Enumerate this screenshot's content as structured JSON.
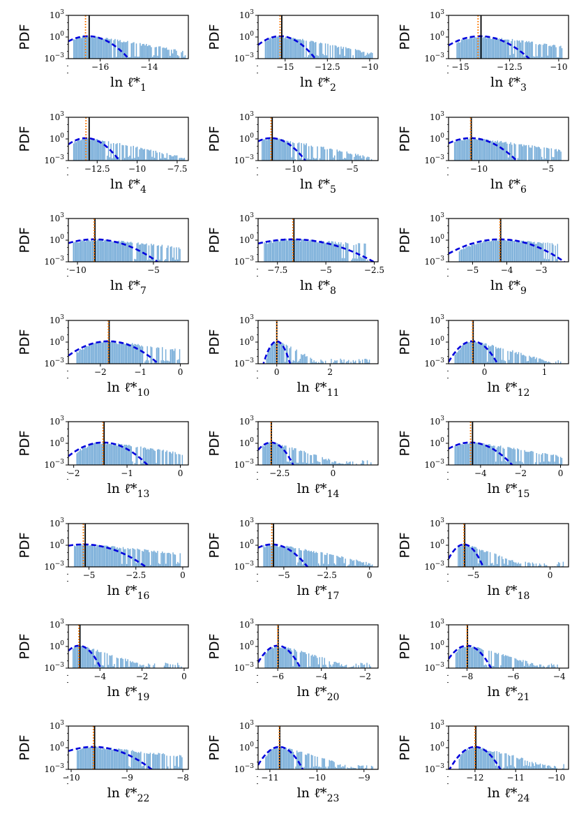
{
  "chart_data": [
    {
      "type": "histogram",
      "ylabel": "PDF",
      "xlabel": "ln ℓ̄*",
      "xlabel_sub": "1",
      "xlim": [
        -17.3,
        -12.4
      ],
      "xticks": [
        -16,
        -14
      ],
      "yscale": "log",
      "ylim": [
        0.001,
        1000
      ],
      "yticks": [
        {
          "base": "10",
          "exp": "3"
        },
        {
          "base": "10",
          "exp": "0"
        },
        {
          "base": "10",
          "exp": "−3"
        }
      ],
      "mode": -16.5,
      "spread": 0.4,
      "hist_start": -17.1,
      "hist_end": -12.5,
      "vlines": {
        "median": -16.45,
        "mean": -16.6
      }
    },
    {
      "type": "histogram",
      "ylabel": "PDF",
      "xlabel": "ln ℓ̄*",
      "xlabel_sub": "2",
      "xlim": [
        -16.6,
        -9.5
      ],
      "xticks": [
        -15.0,
        -12.5,
        -10.0
      ],
      "yscale": "log",
      "ylim": [
        0.001,
        1000
      ],
      "yticks": [
        {
          "base": "10",
          "exp": "3"
        },
        {
          "base": "10",
          "exp": "0"
        },
        {
          "base": "10",
          "exp": "−3"
        }
      ],
      "mode": -15.3,
      "spread": 0.5,
      "hist_start": -16.2,
      "hist_end": -9.8,
      "vlines": {
        "median": -15.2,
        "mean": -15.3
      }
    },
    {
      "type": "histogram",
      "ylabel": "PDF",
      "xlabel": "ln ℓ̄*",
      "xlabel_sub": "3",
      "xlim": [
        -15.6,
        -9.5
      ],
      "xticks": [
        -15.0,
        -12.5,
        -10.0
      ],
      "yscale": "log",
      "ylim": [
        0.001,
        1000
      ],
      "yticks": [
        {
          "base": "10",
          "exp": "3"
        },
        {
          "base": "10",
          "exp": "0"
        },
        {
          "base": "10",
          "exp": "−3"
        }
      ],
      "mode": -14.0,
      "spread": 0.6,
      "hist_start": -15.2,
      "hist_end": -9.8,
      "vlines": {
        "median": -13.95,
        "mean": -14.1
      }
    },
    {
      "type": "histogram",
      "ylabel": "PDF",
      "xlabel": "ln ℓ̄*",
      "xlabel_sub": "4",
      "xlim": [
        -14.3,
        -6.8
      ],
      "xticks": [
        -12.5,
        -10.0,
        -7.5
      ],
      "yscale": "log",
      "ylim": [
        0.001,
        1000
      ],
      "yticks": [
        {
          "base": "10",
          "exp": "3"
        },
        {
          "base": "10",
          "exp": "0"
        },
        {
          "base": "10",
          "exp": "−3"
        }
      ],
      "mode": -13.2,
      "spread": 0.5,
      "hist_start": -14.0,
      "hist_end": -7.0,
      "vlines": {
        "median": -13.0,
        "mean": -13.2
      }
    },
    {
      "type": "histogram",
      "ylabel": "PDF",
      "xlabel": "ln ℓ̄*",
      "xlabel_sub": "5",
      "xlim": [
        -13.0,
        -2.8
      ],
      "xticks": [
        -10,
        -5
      ],
      "yscale": "log",
      "ylim": [
        0.001,
        1000
      ],
      "yticks": [
        {
          "base": "10",
          "exp": "3"
        },
        {
          "base": "10",
          "exp": "0"
        },
        {
          "base": "10",
          "exp": "−3"
        }
      ],
      "mode": -11.9,
      "spread": 0.7,
      "hist_start": -12.7,
      "hist_end": -3.3,
      "vlines": {
        "median": -11.8,
        "mean": -11.9
      }
    },
    {
      "type": "histogram",
      "ylabel": "PDF",
      "xlabel": "ln ℓ̄*",
      "xlabel_sub": "6",
      "xlim": [
        -12.2,
        -3.5
      ],
      "xticks": [
        -10,
        -5
      ],
      "yscale": "log",
      "ylim": [
        0.001,
        1000
      ],
      "yticks": [
        {
          "base": "10",
          "exp": "3"
        },
        {
          "base": "10",
          "exp": "0"
        },
        {
          "base": "10",
          "exp": "−3"
        }
      ],
      "mode": -10.6,
      "spread": 0.8,
      "hist_start": -11.8,
      "hist_end": -4.0,
      "vlines": {
        "median": -10.55,
        "mean": -10.6
      }
    },
    {
      "type": "histogram",
      "ylabel": "PDF",
      "xlabel": "ln ℓ̄*",
      "xlabel_sub": "7",
      "xlim": [
        -10.6,
        -2.7
      ],
      "xticks": [
        -10,
        -5
      ],
      "yscale": "log",
      "ylim": [
        0.001,
        1000
      ],
      "yticks": [
        {
          "base": "10",
          "exp": "3"
        },
        {
          "base": "10",
          "exp": "0"
        },
        {
          "base": "10",
          "exp": "−3"
        }
      ],
      "mode": -8.9,
      "spread": 1.0,
      "hist_start": -10.3,
      "hist_end": -3.2,
      "vlines": {
        "median": -8.85,
        "mean": -8.9
      }
    },
    {
      "type": "histogram",
      "ylabel": "PDF",
      "xlabel": "ln ℓ̄*",
      "xlabel_sub": "8",
      "xlim": [
        -8.5,
        -2.3
      ],
      "xticks": [
        -7.5,
        -5.0,
        -2.5
      ],
      "yscale": "log",
      "ylim": [
        0.001,
        1000
      ],
      "yticks": [
        {
          "base": "10",
          "exp": "3"
        },
        {
          "base": "10",
          "exp": "0"
        },
        {
          "base": "10",
          "exp": "−3"
        }
      ],
      "mode": -6.7,
      "spread": 1.0,
      "hist_start": -8.2,
      "hist_end": -2.8,
      "vlines": {
        "median": -6.65,
        "mean": -6.7
      }
    },
    {
      "type": "histogram",
      "ylabel": "PDF",
      "xlabel": "ln ℓ̄*",
      "xlabel_sub": "9",
      "xlim": [
        -5.7,
        -2.2
      ],
      "xticks": [
        -5,
        -4,
        -3
      ],
      "yscale": "log",
      "ylim": [
        0.001,
        1000
      ],
      "yticks": [
        {
          "base": "10",
          "exp": "3"
        },
        {
          "base": "10",
          "exp": "0"
        },
        {
          "base": "10",
          "exp": "−3"
        }
      ],
      "mode": -4.2,
      "spread": 0.45,
      "hist_start": -5.4,
      "hist_end": -2.5,
      "vlines": {
        "median": -4.18,
        "mean": -4.2
      }
    },
    {
      "type": "histogram",
      "ylabel": "PDF",
      "xlabel": "ln ℓ̄*",
      "xlabel_sub": "10",
      "xlim": [
        -2.8,
        0.2
      ],
      "xticks": [
        -2,
        -1,
        0
      ],
      "yscale": "log",
      "ylim": [
        0.001,
        1000
      ],
      "yticks": [
        {
          "base": "10",
          "exp": "3"
        },
        {
          "base": "10",
          "exp": "0"
        },
        {
          "base": "10",
          "exp": "−3"
        }
      ],
      "mode": -1.8,
      "spread": 0.3,
      "hist_start": -2.6,
      "hist_end": 0.0,
      "vlines": {
        "median": -1.78,
        "mean": -1.8
      }
    },
    {
      "type": "histogram",
      "ylabel": "PDF",
      "xlabel": "ln ℓ̄*",
      "xlabel_sub": "11",
      "xlim": [
        -0.7,
        3.8
      ],
      "xticks": [
        0,
        2
      ],
      "yscale": "log",
      "ylim": [
        0.001,
        1000
      ],
      "yticks": [
        {
          "base": "10",
          "exp": "3"
        },
        {
          "base": "10",
          "exp": "0"
        },
        {
          "base": "10",
          "exp": "−3"
        }
      ],
      "mode": 0.0,
      "spread": 0.12,
      "hist_start": -0.4,
      "hist_end": 3.5,
      "vlines": {
        "median": 0.0,
        "mean": 0.0
      }
    },
    {
      "type": "histogram",
      "ylabel": "PDF",
      "xlabel": "ln ℓ̄*",
      "xlabel_sub": "12",
      "xlim": [
        -0.6,
        1.4
      ],
      "xticks": [
        0,
        1
      ],
      "yscale": "log",
      "ylim": [
        0.001,
        1000
      ],
      "yticks": [
        {
          "base": "10",
          "exp": "3"
        },
        {
          "base": "10",
          "exp": "0"
        },
        {
          "base": "10",
          "exp": "−3"
        }
      ],
      "mode": -0.2,
      "spread": 0.1,
      "hist_start": -0.5,
      "hist_end": 1.3,
      "vlines": {
        "median": -0.19,
        "mean": -0.2
      }
    },
    {
      "type": "histogram",
      "ylabel": "PDF",
      "xlabel": "ln ℓ̄*",
      "xlabel_sub": "13",
      "xlim": [
        -2.1,
        0.15
      ],
      "xticks": [
        -2,
        -1,
        0
      ],
      "yscale": "log",
      "ylim": [
        0.001,
        1000
      ],
      "yticks": [
        {
          "base": "10",
          "exp": "3"
        },
        {
          "base": "10",
          "exp": "0"
        },
        {
          "base": "10",
          "exp": "−3"
        }
      ],
      "mode": -1.45,
      "spread": 0.2,
      "hist_start": -1.95,
      "hist_end": 0.05,
      "vlines": {
        "median": -1.43,
        "mean": -1.45
      }
    },
    {
      "type": "histogram",
      "ylabel": "PDF",
      "xlabel": "ln ℓ̄*",
      "xlabel_sub": "14",
      "xlim": [
        -3.5,
        2.1
      ],
      "xticks": [
        -2.5,
        0.0
      ],
      "yscale": "log",
      "ylim": [
        0.001,
        1000
      ],
      "yticks": [
        {
          "base": "10",
          "exp": "3"
        },
        {
          "base": "10",
          "exp": "0"
        },
        {
          "base": "10",
          "exp": "−3"
        }
      ],
      "mode": -2.9,
      "spread": 0.25,
      "hist_start": -3.3,
      "hist_end": 1.8,
      "vlines": {
        "median": -2.88,
        "mean": -2.9
      }
    },
    {
      "type": "histogram",
      "ylabel": "PDF",
      "xlabel": "ln ℓ̄*",
      "xlabel_sub": "15",
      "xlim": [
        -5.6,
        0.4
      ],
      "xticks": [
        -4,
        -2,
        0
      ],
      "yscale": "log",
      "ylim": [
        0.001,
        1000
      ],
      "yticks": [
        {
          "base": "10",
          "exp": "3"
        },
        {
          "base": "10",
          "exp": "0"
        },
        {
          "base": "10",
          "exp": "−3"
        }
      ],
      "mode": -4.5,
      "spread": 0.5,
      "hist_start": -5.3,
      "hist_end": 0.1,
      "vlines": {
        "median": -4.4,
        "mean": -4.5
      }
    },
    {
      "type": "histogram",
      "ylabel": "PDF",
      "xlabel": "ln ℓ̄*",
      "xlabel_sub": "16",
      "xlim": [
        -6.1,
        0.3
      ],
      "xticks": [
        -5.0,
        -2.5,
        0.0
      ],
      "yscale": "log",
      "ylim": [
        0.001,
        1000
      ],
      "yticks": [
        {
          "base": "10",
          "exp": "3"
        },
        {
          "base": "10",
          "exp": "0"
        },
        {
          "base": "10",
          "exp": "−3"
        }
      ],
      "mode": -5.3,
      "spread": 0.8,
      "hist_start": -5.8,
      "hist_end": -0.1,
      "vlines": {
        "median": -5.2,
        "mean": -5.3
      }
    },
    {
      "type": "histogram",
      "ylabel": "PDF",
      "xlabel": "ln ℓ̄*",
      "xlabel_sub": "17",
      "xlim": [
        -6.5,
        0.5
      ],
      "xticks": [
        -5.0,
        -2.5,
        0.0
      ],
      "yscale": "log",
      "ylim": [
        0.001,
        1000
      ],
      "yticks": [
        {
          "base": "10",
          "exp": "3"
        },
        {
          "base": "10",
          "exp": "0"
        },
        {
          "base": "10",
          "exp": "−3"
        }
      ],
      "mode": -5.7,
      "spread": 0.5,
      "hist_start": -6.2,
      "hist_end": 0.2,
      "vlines": {
        "median": -5.6,
        "mean": -5.7
      }
    },
    {
      "type": "histogram",
      "ylabel": "PDF",
      "xlabel": "ln ℓ̄*",
      "xlabel_sub": "18",
      "xlim": [
        -6.6,
        1.2
      ],
      "xticks": [
        -5,
        0
      ],
      "yscale": "log",
      "ylim": [
        0.001,
        1000
      ],
      "yticks": [
        {
          "base": "10",
          "exp": "3"
        },
        {
          "base": "10",
          "exp": "0"
        },
        {
          "base": "10",
          "exp": "−3"
        }
      ],
      "mode": -5.6,
      "spread": 0.3,
      "hist_start": -6.0,
      "hist_end": 0.9,
      "vlines": {
        "median": -5.55,
        "mean": -5.6
      }
    },
    {
      "type": "histogram",
      "ylabel": "PDF",
      "xlabel": "ln ℓ̄*",
      "xlabel_sub": "19",
      "xlim": [
        -5.5,
        0.2
      ],
      "xticks": [
        -4,
        -2,
        0
      ],
      "yscale": "log",
      "ylim": [
        0.001,
        1000
      ],
      "yticks": [
        {
          "base": "10",
          "exp": "3"
        },
        {
          "base": "10",
          "exp": "0"
        },
        {
          "base": "10",
          "exp": "−3"
        }
      ],
      "mode": -5.0,
      "spread": 0.25,
      "hist_start": -5.3,
      "hist_end": -0.1,
      "vlines": {
        "median": -4.95,
        "mean": -5.0
      }
    },
    {
      "type": "histogram",
      "ylabel": "PDF",
      "xlabel": "ln ℓ̄*",
      "xlabel_sub": "20",
      "xlim": [
        -6.9,
        -1.4
      ],
      "xticks": [
        -6,
        -4,
        -2
      ],
      "yscale": "log",
      "ylim": [
        0.001,
        1000
      ],
      "yticks": [
        {
          "base": "10",
          "exp": "3"
        },
        {
          "base": "10",
          "exp": "0"
        },
        {
          "base": "10",
          "exp": "−3"
        }
      ],
      "mode": -6.0,
      "spread": 0.25,
      "hist_start": -6.6,
      "hist_end": -1.6,
      "vlines": {
        "median": -5.98,
        "mean": -6.0
      }
    },
    {
      "type": "histogram",
      "ylabel": "PDF",
      "xlabel": "ln ℓ̄*",
      "xlabel_sub": "21",
      "xlim": [
        -8.8,
        -3.6
      ],
      "xticks": [
        -8,
        -6,
        -4
      ],
      "yscale": "log",
      "ylim": [
        0.001,
        1000
      ],
      "yticks": [
        {
          "base": "10",
          "exp": "3"
        },
        {
          "base": "10",
          "exp": "0"
        },
        {
          "base": "10",
          "exp": "−3"
        }
      ],
      "mode": -8.0,
      "spread": 0.25,
      "hist_start": -8.5,
      "hist_end": -3.9,
      "vlines": {
        "median": -7.98,
        "mean": -8.0
      }
    },
    {
      "type": "histogram",
      "ylabel": "PDF",
      "xlabel": "ln ℓ̄*",
      "xlabel_sub": "22",
      "xlim": [
        -10.05,
        -7.9
      ],
      "xticks": [
        -10,
        -9,
        -8
      ],
      "yscale": "log",
      "ylim": [
        0.001,
        1000
      ],
      "yticks": [
        {
          "base": "10",
          "exp": "3"
        },
        {
          "base": "10",
          "exp": "0"
        },
        {
          "base": "10",
          "exp": "−3"
        }
      ],
      "mode": -9.6,
      "spread": 0.25,
      "hist_start": -9.9,
      "hist_end": -8.0,
      "vlines": {
        "median": -9.58,
        "mean": -9.6
      }
    },
    {
      "type": "histogram",
      "ylabel": "PDF",
      "xlabel": "ln ℓ̄*",
      "xlabel_sub": "23",
      "xlim": [
        -11.25,
        -8.7
      ],
      "xticks": [
        -11,
        -10,
        -9
      ],
      "yscale": "log",
      "ylim": [
        0.001,
        1000
      ],
      "yticks": [
        {
          "base": "10",
          "exp": "3"
        },
        {
          "base": "10",
          "exp": "0"
        },
        {
          "base": "10",
          "exp": "−3"
        }
      ],
      "mode": -10.8,
      "spread": 0.12,
      "hist_start": -11.1,
      "hist_end": -8.8,
      "vlines": {
        "median": -10.79,
        "mean": -10.8
      }
    },
    {
      "type": "histogram",
      "ylabel": "PDF",
      "xlabel": "ln ℓ̄*",
      "xlabel_sub": "24",
      "xlim": [
        -12.65,
        -9.7
      ],
      "xticks": [
        -12,
        -11,
        -10
      ],
      "yscale": "log",
      "ylim": [
        0.001,
        1000
      ],
      "yticks": [
        {
          "base": "10",
          "exp": "3"
        },
        {
          "base": "10",
          "exp": "0"
        },
        {
          "base": "10",
          "exp": "−3"
        }
      ],
      "mode": -12.0,
      "spread": 0.15,
      "hist_start": -12.4,
      "hist_end": -9.8,
      "vlines": {
        "median": -11.98,
        "mean": -12.0
      }
    }
  ],
  "style": {
    "hist_color": "#5a9bd0",
    "fit_color": "#0000dd",
    "median_color": "#000000",
    "mean_color": "#ff7f0e"
  }
}
